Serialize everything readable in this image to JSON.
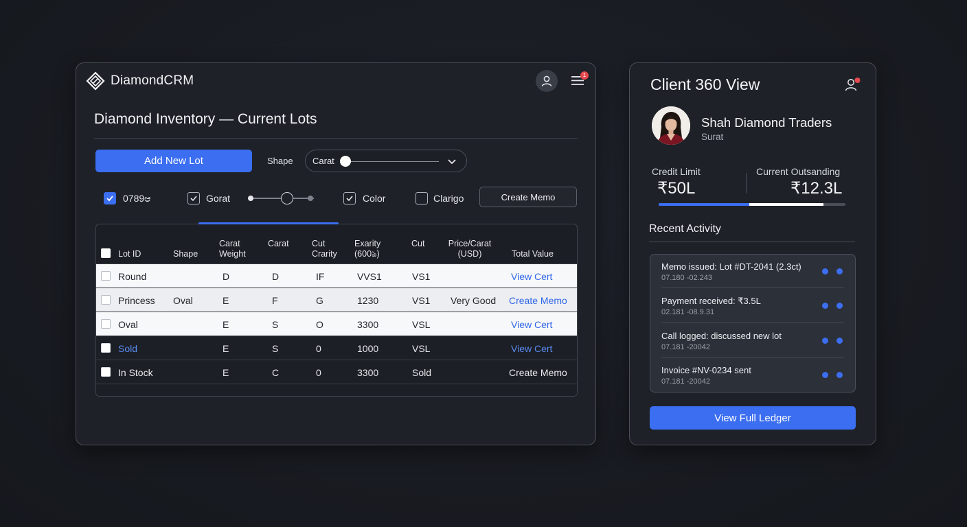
{
  "app": {
    "brand_name": "DiamondCRM",
    "notification_count": "1"
  },
  "inventory": {
    "page_title": "Diamond Inventory — Current Lots",
    "add_button_label": "Add New Lot",
    "shape_label": "Shape",
    "carat_select_label": "Carat",
    "filters": [
      {
        "label": "0789ಆ",
        "checked": true,
        "style": "blue"
      },
      {
        "label": "Gorat",
        "checked": true,
        "style": "outline"
      },
      {
        "label": "Color",
        "checked": true,
        "style": "outline"
      },
      {
        "label": "Clarigo",
        "checked": false,
        "style": "outline"
      }
    ],
    "create_memo_label": "Create Memo",
    "columns": {
      "lot_id": "Lot ID",
      "shape": "Shape",
      "carat_weight": "Carat Weight",
      "carat": "Carat",
      "cut_clarity": "Cut Crarity",
      "exarity": "Exarity (600ঌ)",
      "cut": "Cut",
      "price_carat": "Price/Carat (USD)",
      "total_value": "Total Value"
    },
    "rows": [
      {
        "lot_id": "Round",
        "shape": "",
        "carat_weight": "D",
        "carat": "D",
        "cut_clarity": "IF",
        "exarity": "VVS1",
        "cut": "VS1",
        "price_carat": "",
        "total_value": "View Cert",
        "theme": "light"
      },
      {
        "lot_id": "Princess",
        "shape": "Oval",
        "carat_weight": "E",
        "carat": "F",
        "cut_clarity": "G",
        "exarity": "1230",
        "cut": "VS1",
        "price_carat": "Very Good",
        "total_value": "Create Memo",
        "theme": "light2"
      },
      {
        "lot_id": "Oval",
        "shape": "",
        "carat_weight": "E",
        "carat": "S",
        "cut_clarity": "O",
        "exarity": "3300",
        "cut": "VSL",
        "price_carat": "",
        "total_value": "View Cert",
        "theme": "light"
      },
      {
        "lot_id": "Sold",
        "shape": "",
        "carat_weight": "E",
        "carat": "S",
        "cut_clarity": "0",
        "exarity": "1000",
        "cut": "VSL",
        "price_carat": "",
        "total_value": "View Cert",
        "theme": "dark"
      },
      {
        "lot_id": "In Stock",
        "shape": "",
        "carat_weight": "E",
        "carat": "C",
        "cut_clarity": "0",
        "exarity": "3300",
        "cut": "Sold",
        "price_carat": "",
        "total_value": "Create Memo",
        "theme": "dark"
      }
    ]
  },
  "client": {
    "panel_title": "Client 360 View",
    "name": "Shah Diamond Traders",
    "city": "Surat",
    "credit_limit_label": "Credit Limit",
    "credit_limit_value": "₹50L",
    "outstanding_label": "Current Outsanding",
    "outstanding_value": "₹12.3L",
    "recent_activity_title": "Recent Activity",
    "activities": [
      {
        "title": "Memo issued: Lot #DT-2041 (2.3ct)",
        "time": "07.180 -02.243"
      },
      {
        "title": "Payment received: ₹3.5L",
        "time": "02.181 -08.9.31"
      },
      {
        "title": "Call logged: discussed new lot",
        "time": "07.181 -20042"
      },
      {
        "title": "Invoice #NV-0234 sent",
        "time": "07.181 -20042"
      }
    ],
    "ledger_button_label": "View Full Ledger"
  },
  "colors": {
    "accent": "#3b6ef0",
    "panel_bg": "#1e2128",
    "page_bg": "#181b21",
    "badge": "#e5484d"
  },
  "icons": {
    "brand": "diamond-logo-icon",
    "user": "user-icon",
    "menu": "hamburger-menu-icon",
    "client": "user-alert-icon",
    "select": "chevron-down-icon"
  }
}
